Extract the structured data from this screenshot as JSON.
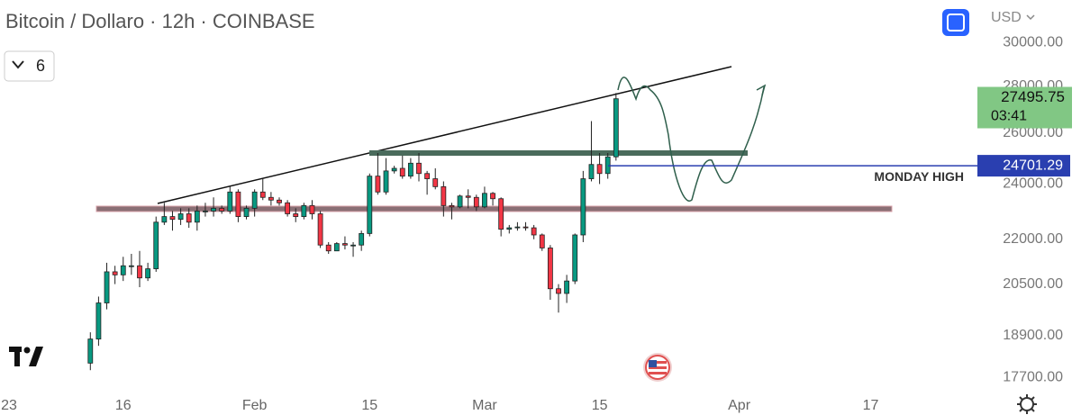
{
  "chart_data": {
    "type": "candlestick",
    "title": "Bitcoin / Dollaro · 12h · COINBASE",
    "interval": "6",
    "currency": "USD",
    "x": [
      "2023-01-12",
      "2023-01-13",
      "2023-01-14",
      "2023-01-15",
      "2023-01-16",
      "2023-01-17",
      "2023-01-18",
      "2023-01-19",
      "2023-01-20",
      "2023-01-21",
      "2023-01-22",
      "2023-01-23",
      "2023-01-24",
      "2023-01-25",
      "2023-01-26",
      "2023-01-27",
      "2023-01-28",
      "2023-01-29",
      "2023-01-30",
      "2023-01-31",
      "2023-02-01",
      "2023-02-02",
      "2023-02-03",
      "2023-02-04",
      "2023-02-05",
      "2023-02-06",
      "2023-02-07",
      "2023-02-08",
      "2023-02-09",
      "2023-02-10",
      "2023-02-11",
      "2023-02-12",
      "2023-02-13",
      "2023-02-14",
      "2023-02-15",
      "2023-02-16",
      "2023-02-17",
      "2023-02-18",
      "2023-02-19",
      "2023-02-20",
      "2023-02-21",
      "2023-02-22",
      "2023-02-23",
      "2023-02-24",
      "2023-02-25",
      "2023-02-26",
      "2023-02-27",
      "2023-02-28",
      "2023-03-01",
      "2023-03-02",
      "2023-03-03",
      "2023-03-04",
      "2023-03-05",
      "2023-03-06",
      "2023-03-07",
      "2023-03-08",
      "2023-03-09",
      "2023-03-10",
      "2023-03-11",
      "2023-03-12",
      "2023-03-13",
      "2023-03-14",
      "2023-03-15",
      "2023-03-16",
      "2023-03-17"
    ],
    "open": [
      18100,
      18800,
      19900,
      20900,
      20800,
      21100,
      21100,
      20700,
      21000,
      22600,
      22800,
      22700,
      22900,
      22600,
      23000,
      23000,
      23100,
      23000,
      23700,
      22800,
      23100,
      23700,
      23500,
      23400,
      23300,
      22900,
      22800,
      23200,
      22900,
      21800,
      21600,
      21850,
      21800,
      21800,
      22200,
      24300,
      23700,
      24500,
      24600,
      24300,
      24800,
      24400,
      24200,
      23900,
      23200,
      23150,
      23550,
      23500,
      23150,
      23650,
      23450,
      22350,
      22400,
      22430,
      22400,
      22150,
      21700,
      20350,
      20200,
      20600,
      22150,
      24200,
      24750,
      24400,
      25050
    ],
    "high": [
      19000,
      20100,
      21200,
      21100,
      21400,
      21500,
      21600,
      21200,
      22800,
      23300,
      23000,
      23100,
      23100,
      23200,
      23300,
      23500,
      23200,
      23900,
      23800,
      23200,
      23800,
      24200,
      23700,
      23500,
      23400,
      23100,
      23300,
      23400,
      23000,
      21900,
      21900,
      22100,
      21900,
      22300,
      24400,
      25200,
      25000,
      24700,
      25100,
      25000,
      25200,
      24500,
      24600,
      24100,
      23300,
      23600,
      23800,
      23600,
      23900,
      23700,
      23500,
      22500,
      22600,
      22600,
      22500,
      22200,
      21800,
      20500,
      20800,
      22200,
      24500,
      26500,
      25200,
      25200,
      27700
    ],
    "low": [
      17900,
      18600,
      19700,
      20500,
      20600,
      20800,
      20400,
      20600,
      20900,
      22500,
      22300,
      22500,
      22400,
      22300,
      22800,
      22800,
      22900,
      22900,
      22600,
      22700,
      22800,
      23400,
      23200,
      23200,
      22800,
      22600,
      22700,
      22700,
      21700,
      21500,
      21600,
      21650,
      21400,
      21600,
      22100,
      23600,
      23600,
      24400,
      24200,
      24200,
      24100,
      23600,
      23800,
      22800,
      22700,
      23100,
      23100,
      23000,
      23100,
      23200,
      22100,
      22200,
      22300,
      22300,
      22000,
      21600,
      20000,
      19600,
      19900,
      20500,
      21900,
      24100,
      24000,
      24200,
      24900
    ],
    "close": [
      18800,
      19900,
      20900,
      20800,
      21100,
      21100,
      20700,
      21000,
      22600,
      22800,
      22700,
      22900,
      22600,
      23000,
      23000,
      23100,
      23000,
      23700,
      22800,
      23100,
      23700,
      23500,
      23400,
      23300,
      22900,
      22800,
      23200,
      22900,
      21800,
      21600,
      21850,
      21800,
      21800,
      22200,
      24300,
      23700,
      24500,
      24600,
      24300,
      24800,
      24400,
      24200,
      23900,
      23200,
      23150,
      23550,
      23500,
      23150,
      23650,
      23450,
      22350,
      22400,
      22430,
      22400,
      22150,
      21700,
      20350,
      20200,
      20600,
      22150,
      24200,
      24750,
      24400,
      25050,
      27450
    ],
    "up_color": "#089981",
    "down_color": "#f23645",
    "xlim": [
      "2023-01-01",
      "2023-04-30"
    ],
    "xticks": [
      {
        "value": "2023-01-01",
        "label": "23"
      },
      {
        "value": "2023-01-16",
        "label": "16"
      },
      {
        "value": "2023-02-01",
        "label": "Feb"
      },
      {
        "value": "2023-02-15",
        "label": "15"
      },
      {
        "value": "2023-03-01",
        "label": "Mar"
      },
      {
        "value": "2023-03-15",
        "label": "15"
      },
      {
        "value": "2023-04-01",
        "label": "Apr"
      },
      {
        "value": "2023-04-17",
        "label": "17"
      }
    ],
    "ylim": [
      17380,
      32070
    ],
    "log_scale": true,
    "yticks": [
      {
        "value": 30000,
        "label": "30000.00"
      },
      {
        "value": 28000,
        "label": "28000.00"
      },
      {
        "value": 26000,
        "label": "26000.00"
      },
      {
        "value": 24000,
        "label": "24000.00"
      },
      {
        "value": 22000,
        "label": "22000.00"
      },
      {
        "value": 20500,
        "label": "20500.00"
      },
      {
        "value": 18900,
        "label": "18900.00"
      },
      {
        "value": 17700,
        "label": "17700.00"
      }
    ],
    "last_price": 27495.75,
    "countdown": "03:41",
    "level": {
      "value": 24701.29,
      "label": "MONDAY HIGH"
    }
  }
}
